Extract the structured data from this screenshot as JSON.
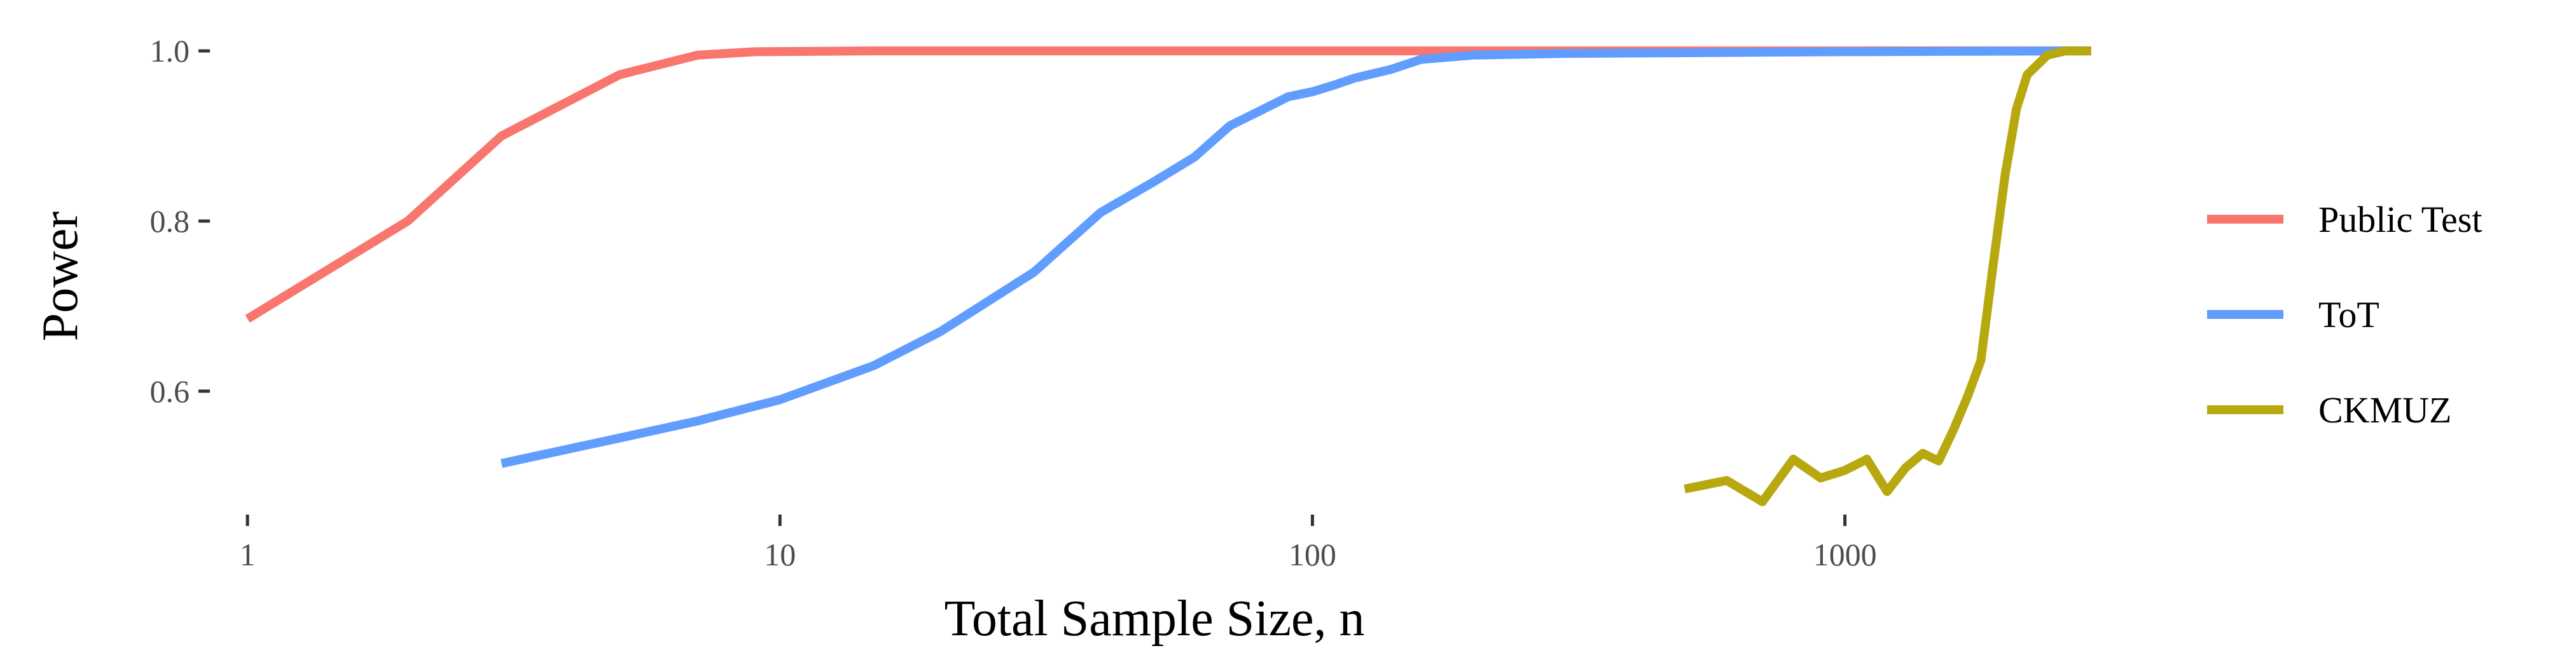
{
  "chart_data": {
    "type": "line",
    "title": "",
    "xlabel": "Total Sample Size, n",
    "ylabel": "Power",
    "x_scale": "log10",
    "xlim": [
      0.85,
      3000
    ],
    "ylim": [
      0.455,
      1.015
    ],
    "x_ticks": [
      {
        "value": 1,
        "label": "1"
      },
      {
        "value": 10,
        "label": "10"
      },
      {
        "value": 100,
        "label": "100"
      },
      {
        "value": 1000,
        "label": "1000"
      }
    ],
    "y_ticks": [
      {
        "value": 0.6,
        "label": "0.6"
      },
      {
        "value": 0.8,
        "label": "0.8"
      },
      {
        "value": 1.0,
        "label": "1.0"
      }
    ],
    "grid": false,
    "legend_position": "right",
    "series": [
      {
        "name": "Public Test",
        "color": "#F8766D",
        "points": [
          [
            1,
            0.685
          ],
          [
            2,
            0.8
          ],
          [
            3,
            0.9
          ],
          [
            5,
            0.972
          ],
          [
            7,
            0.995
          ],
          [
            9,
            0.999
          ],
          [
            15,
            1.0
          ],
          [
            30,
            1.0
          ],
          [
            100,
            1.0
          ],
          [
            300,
            1.0
          ],
          [
            1000,
            1.0
          ],
          [
            2900,
            1.0
          ]
        ]
      },
      {
        "name": "ToT",
        "color": "#619CFF",
        "points": [
          [
            3,
            0.515
          ],
          [
            5,
            0.545
          ],
          [
            7,
            0.565
          ],
          [
            10,
            0.59
          ],
          [
            15,
            0.63
          ],
          [
            20,
            0.67
          ],
          [
            30,
            0.74
          ],
          [
            40,
            0.81
          ],
          [
            50,
            0.845
          ],
          [
            60,
            0.875
          ],
          [
            70,
            0.912
          ],
          [
            80,
            0.93
          ],
          [
            90,
            0.946
          ],
          [
            100,
            0.952
          ],
          [
            110,
            0.96
          ],
          [
            120,
            0.968
          ],
          [
            140,
            0.978
          ],
          [
            160,
            0.99
          ],
          [
            200,
            0.995
          ],
          [
            300,
            0.997
          ],
          [
            1000,
            0.999
          ],
          [
            2900,
            1.0
          ]
        ]
      },
      {
        "name": "CKMUZ",
        "color": "#B8A80F",
        "points": [
          [
            500,
            0.485
          ],
          [
            600,
            0.495
          ],
          [
            700,
            0.47
          ],
          [
            800,
            0.52
          ],
          [
            900,
            0.498
          ],
          [
            1000,
            0.507
          ],
          [
            1100,
            0.52
          ],
          [
            1200,
            0.482
          ],
          [
            1300,
            0.51
          ],
          [
            1400,
            0.527
          ],
          [
            1500,
            0.518
          ],
          [
            1600,
            0.555
          ],
          [
            1700,
            0.594
          ],
          [
            1800,
            0.636
          ],
          [
            1900,
            0.75
          ],
          [
            2000,
            0.855
          ],
          [
            2100,
            0.932
          ],
          [
            2200,
            0.972
          ],
          [
            2400,
            0.995
          ],
          [
            2600,
            1.0
          ],
          [
            2900,
            1.0
          ]
        ]
      }
    ]
  }
}
